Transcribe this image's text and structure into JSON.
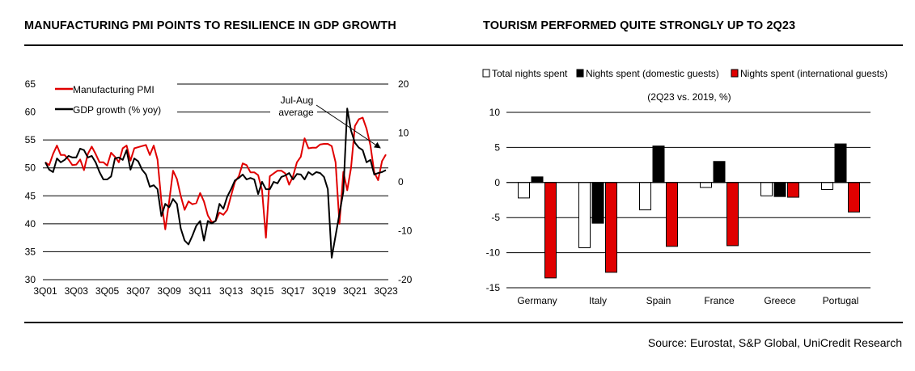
{
  "left_title": "MANUFACTURING PMI POINTS TO RESILIENCE IN GDP GROWTH",
  "right_title": "TOURISM PERFORMED QUITE STRONGLY UP TO 2Q23",
  "source": "Source: Eurostat, S&P Global, UniCredit Research",
  "colors": {
    "red": "#e00000",
    "black": "#000000",
    "white": "#ffffff"
  },
  "chart_data": [
    {
      "type": "line",
      "title": "MANUFACTURING PMI POINTS TO RESILIENCE IN GDP GROWTH",
      "x_start": "3Q01",
      "x_end": "3Q23",
      "x_ticks": [
        "3Q01",
        "3Q03",
        "3Q05",
        "3Q07",
        "3Q09",
        "3Q11",
        "3Q13",
        "3Q15",
        "3Q17",
        "3Q19",
        "3Q21",
        "3Q23"
      ],
      "y_left": {
        "range": [
          30,
          65
        ],
        "ticks": [
          "65",
          "60",
          "55",
          "50",
          "45",
          "40",
          "35",
          "30"
        ]
      },
      "y_right": {
        "range": [
          -20,
          20
        ],
        "ticks": [
          "20",
          "10",
          "0",
          "-10",
          "-20"
        ]
      },
      "grid": true,
      "legend_position": "top-left",
      "annotation": "Jul-Aug average",
      "annotation_lines": [
        "Jul-Aug",
        "average"
      ],
      "series": [
        {
          "name": "Manufacturing PMI",
          "axis": "left",
          "color": "#e00000",
          "values": [
            51,
            50.5,
            52.5,
            54,
            52.3,
            52.3,
            51.5,
            50.5,
            50.6,
            51.5,
            49.6,
            52.5,
            53.8,
            52.5,
            51,
            51,
            50.4,
            52.7,
            52,
            51,
            53.5,
            54,
            51.3,
            53.5,
            53.7,
            53.9,
            54.1,
            52.3,
            54,
            51.5,
            44,
            39,
            44,
            49.5,
            48,
            45,
            42.5,
            44,
            43.5,
            43.7,
            45.5,
            44,
            41.5,
            40.3,
            40.5,
            42,
            41.6,
            42.5,
            45,
            47.5,
            48.5,
            50.8,
            50.5,
            49.2,
            49.2,
            48.7,
            46,
            37.5,
            48.5,
            49,
            49.5,
            49.5,
            49,
            47,
            48.5,
            51,
            52,
            55.3,
            53.5,
            53.6,
            53.6,
            54.2,
            54.3,
            54.3,
            53.9,
            51,
            40,
            49.3,
            46,
            50,
            57.5,
            58.7,
            59,
            57,
            54,
            49.2,
            47.8,
            51.2,
            52.4
          ]
        },
        {
          "name": "GDP growth (% yoy)",
          "axis": "right",
          "color": "#000000",
          "values": [
            4,
            2.5,
            2,
            4.8,
            4,
            4.5,
            5.3,
            5,
            5,
            6.8,
            6.5,
            5,
            5.3,
            4,
            2,
            0.5,
            0.5,
            1.1,
            4.8,
            5,
            4.5,
            6.5,
            2.5,
            4.8,
            4.2,
            2.5,
            1.5,
            -1,
            -0.7,
            -1.5,
            -7,
            -4.5,
            -5.2,
            -3.5,
            -4.5,
            -9.5,
            -12,
            -12.8,
            -11,
            -9,
            -8,
            -12,
            -8,
            -8.5,
            -8,
            -4.5,
            -5.5,
            -3,
            -1.5,
            0.3,
            0.8,
            1.5,
            0.5,
            0.8,
            0.5,
            -2.5,
            0,
            -1.5,
            -1.5,
            0,
            -0.3,
            1,
            1.3,
            1.8,
            0.5,
            1.6,
            1.5,
            0.5,
            2,
            1.4,
            2,
            1.8,
            1,
            -1.5,
            -15.5,
            -11,
            -6.5,
            -2,
            15,
            10.5,
            8,
            7,
            6.5,
            4,
            4.5,
            1.5,
            1.8,
            2.0,
            2.4
          ]
        }
      ]
    },
    {
      "type": "bar",
      "title": "TOURISM PERFORMED QUITE STRONGLY UP TO 2Q23",
      "subtitle": "(2Q23 vs. 2019, %)",
      "categories": [
        "Germany",
        "Italy",
        "Spain",
        "France",
        "Greece",
        "Portugal"
      ],
      "ylim": [
        -15,
        10
      ],
      "y_ticks": [
        "10",
        "5",
        "0",
        "-5",
        "-10",
        "-15"
      ],
      "grid": true,
      "legend_position": "top",
      "series": [
        {
          "name": "Total nights spent",
          "color": "#ffffff",
          "values": [
            -2.2,
            -9.3,
            -3.9,
            -0.7,
            -1.9,
            -1.0
          ]
        },
        {
          "name": "Nights spent (domestic guests)",
          "color": "#000000",
          "values": [
            0.8,
            -5.8,
            5.2,
            3.0,
            -2.0,
            5.5
          ]
        },
        {
          "name": "Nights spent (international guests)",
          "color": "#e00000",
          "values": [
            -13.6,
            -12.8,
            -9.1,
            -9.0,
            -2.1,
            -4.2
          ]
        }
      ]
    }
  ]
}
